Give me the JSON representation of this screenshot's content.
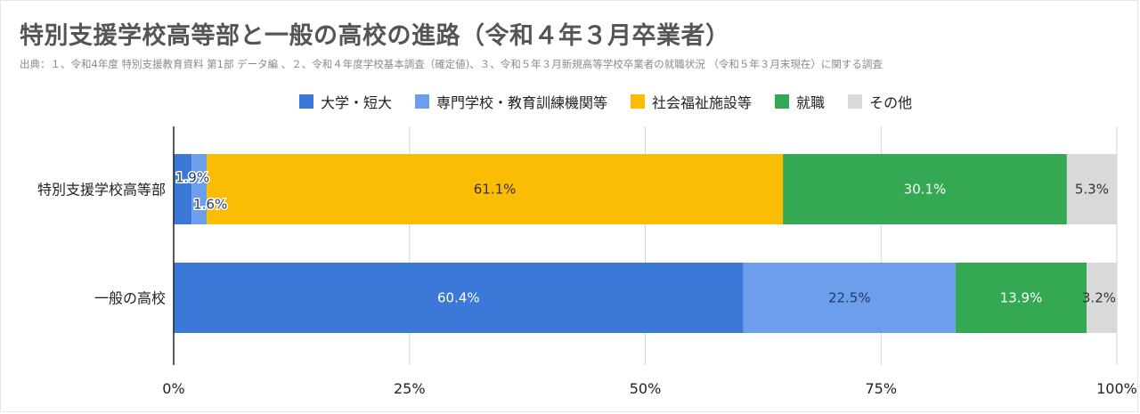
{
  "chart_data": {
    "type": "bar",
    "orientation": "horizontal",
    "stacked": "percent",
    "title": "特別支援学校高等部と一般の高校の進路（令和４年３月卒業者）",
    "subtitle": "出典：１、令和4年度 特別支援教育資料 第1部 データ編 、２、令和４年度学校基本調査（確定値)、３、令和５年３月新規高等学校卒業者の就職状況 （令和５年３月末現在）に関する調査",
    "categories": [
      "特別支援学校高等部",
      "一般の高校"
    ],
    "series": [
      {
        "name": "大学・短大",
        "color": "#3c78d8",
        "label_color": "#ffffff",
        "values": [
          1.9,
          60.4
        ]
      },
      {
        "name": "専門学校・教育訓練機関等",
        "color": "#6d9eeb",
        "label_color": "#1f3a6b",
        "values": [
          1.6,
          22.5
        ]
      },
      {
        "name": "社会福祉施設等",
        "color": "#fbbc04",
        "label_color": "#333333",
        "values": [
          61.1,
          0
        ]
      },
      {
        "name": "就職",
        "color": "#34a853",
        "label_color": "#ffffff",
        "values": [
          30.1,
          13.9
        ]
      },
      {
        "name": "その他",
        "color": "#d9d9d9",
        "label_color": "#333333",
        "values": [
          5.3,
          3.2
        ]
      }
    ],
    "xlim": [
      0,
      100
    ],
    "x_ticks": [
      "0%",
      "25%",
      "50%",
      "75%",
      "100%"
    ],
    "grid": true,
    "legend_position": "top"
  }
}
